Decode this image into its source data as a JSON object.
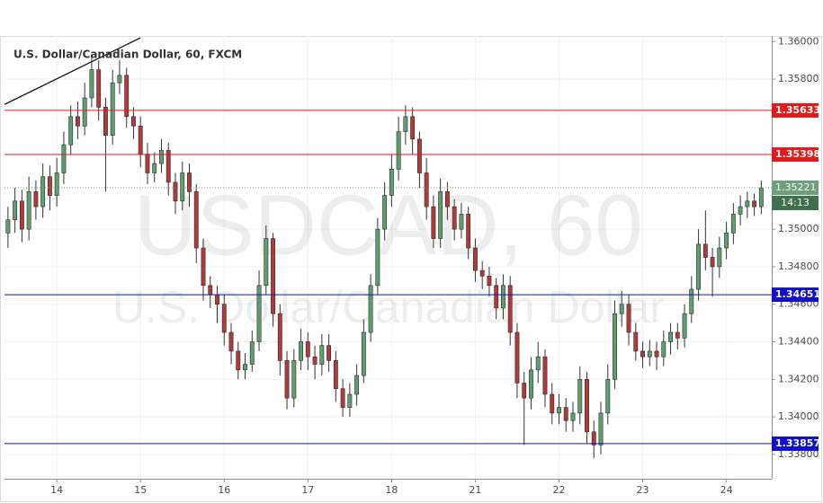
{
  "chart_data": {
    "type": "candlestick",
    "title": "U.S. Dollar/Canadian Dollar, 60, FXCM",
    "watermark": "USDCAD, 60",
    "watermark_subtitle": "U.S. Dollar/Canadian Dollar",
    "up_color": "#5f9e6e",
    "down_color": "#b23a3a",
    "grid": true,
    "xlim": [
      0,
      220
    ],
    "ylim": [
      1.3367,
      1.3603
    ],
    "xticks": [
      {
        "value": 15,
        "label": "14"
      },
      {
        "value": 39,
        "label": "15"
      },
      {
        "value": 63,
        "label": "16"
      },
      {
        "value": 87,
        "label": "17"
      },
      {
        "value": 111,
        "label": "18"
      },
      {
        "value": 135,
        "label": "21"
      },
      {
        "value": 159,
        "label": "22"
      },
      {
        "value": 183,
        "label": "23"
      },
      {
        "value": 207,
        "label": "24"
      }
    ],
    "yticks": [
      {
        "value": 1.36,
        "label": "1.36000"
      },
      {
        "value": 1.358,
        "label": "1.35800"
      },
      {
        "value": 1.35,
        "label": "1.35000"
      },
      {
        "value": 1.348,
        "label": "1.34800"
      },
      {
        "value": 1.346,
        "label": "1.34600"
      },
      {
        "value": 1.344,
        "label": "1.34400"
      },
      {
        "value": 1.342,
        "label": "1.34200"
      },
      {
        "value": 1.34,
        "label": "1.34000"
      },
      {
        "value": 1.338,
        "label": "1.33800"
      }
    ],
    "x": [
      1,
      3,
      5,
      7,
      9,
      11,
      13,
      15,
      17,
      19,
      21,
      23,
      25,
      27,
      29,
      31,
      33,
      35,
      37,
      39,
      41,
      43,
      45,
      47,
      49,
      51,
      53,
      55,
      57,
      59,
      61,
      63,
      65,
      67,
      69,
      71,
      73,
      75,
      77,
      79,
      81,
      83,
      85,
      87,
      89,
      91,
      93,
      95,
      97,
      99,
      101,
      103,
      105,
      107,
      109,
      111,
      113,
      115,
      117,
      119,
      121,
      123,
      125,
      127,
      129,
      131,
      133,
      135,
      137,
      139,
      141,
      143,
      145,
      147,
      149,
      151,
      153,
      155,
      157,
      159,
      161,
      163,
      165,
      167,
      169,
      171,
      173,
      175,
      177,
      179,
      181,
      183,
      185,
      187,
      189,
      191,
      193,
      195,
      197,
      199,
      201,
      203,
      205,
      207,
      209,
      211,
      213,
      215,
      217
    ],
    "open": [
      1.3498,
      1.3505,
      1.3515,
      1.35,
      1.352,
      1.3512,
      1.3528,
      1.3518,
      1.353,
      1.3545,
      1.356,
      1.3555,
      1.357,
      1.3585,
      1.3565,
      1.355,
      1.3578,
      1.3582,
      1.356,
      1.3555,
      1.354,
      1.353,
      1.3535,
      1.3542,
      1.3525,
      1.3515,
      1.353,
      1.352,
      1.349,
      1.347,
      1.3465,
      1.346,
      1.3445,
      1.3435,
      1.3425,
      1.3428,
      1.344,
      1.347,
      1.3495,
      1.3455,
      1.343,
      1.341,
      1.343,
      1.344,
      1.3432,
      1.3428,
      1.3438,
      1.343,
      1.3415,
      1.3405,
      1.3412,
      1.3422,
      1.3445,
      1.347,
      1.35,
      1.3518,
      1.3532,
      1.3552,
      1.356,
      1.3548,
      1.353,
      1.3512,
      1.3495,
      1.352,
      1.3512,
      1.35,
      1.3508,
      1.349,
      1.3478,
      1.3475,
      1.347,
      1.3458,
      1.347,
      1.3445,
      1.3418,
      1.341,
      1.3425,
      1.3432,
      1.3412,
      1.3402,
      1.3405,
      1.3398,
      1.3402,
      1.342,
      1.3392,
      1.3385,
      1.3402,
      1.342,
      1.3455,
      1.346,
      1.3445,
      1.3435,
      1.3432,
      1.3435,
      1.3432,
      1.344,
      1.3445,
      1.3442,
      1.3455,
      1.3468,
      1.3492,
      1.3485,
      1.348,
      1.349,
      1.3498,
      1.3508,
      1.3512,
      1.3515,
      1.3512
    ],
    "high": [
      1.3512,
      1.3522,
      1.3521,
      1.3528,
      1.3526,
      1.3535,
      1.3534,
      1.3538,
      1.3552,
      1.3566,
      1.3568,
      1.3578,
      1.3592,
      1.359,
      1.357,
      1.3585,
      1.359,
      1.3586,
      1.3565,
      1.356,
      1.3546,
      1.3541,
      1.3548,
      1.3546,
      1.353,
      1.3536,
      1.3535,
      1.3524,
      1.3495,
      1.3475,
      1.347,
      1.3465,
      1.345,
      1.344,
      1.3434,
      1.3446,
      1.3478,
      1.3502,
      1.3498,
      1.346,
      1.3435,
      1.3436,
      1.3447,
      1.3445,
      1.3438,
      1.3444,
      1.3444,
      1.3435,
      1.342,
      1.3418,
      1.3428,
      1.3452,
      1.3476,
      1.3506,
      1.3525,
      1.354,
      1.356,
      1.3566,
      1.3565,
      1.3552,
      1.3538,
      1.3518,
      1.3527,
      1.3525,
      1.3516,
      1.3514,
      1.3512,
      1.3495,
      1.3483,
      1.348,
      1.3474,
      1.3476,
      1.3475,
      1.345,
      1.3424,
      1.3432,
      1.344,
      1.3436,
      1.3418,
      1.3412,
      1.341,
      1.3408,
      1.3427,
      1.3424,
      1.3398,
      1.3408,
      1.3428,
      1.3462,
      1.3467,
      1.3465,
      1.345,
      1.344,
      1.3441,
      1.344,
      1.3446,
      1.345,
      1.345,
      1.346,
      1.3475,
      1.35,
      1.351,
      1.349,
      1.3496,
      1.3504,
      1.3514,
      1.3518,
      1.352,
      1.3519,
      1.3526
    ],
    "low": [
      1.349,
      1.3498,
      1.3493,
      1.3494,
      1.3505,
      1.3506,
      1.351,
      1.3512,
      1.3524,
      1.354,
      1.3548,
      1.355,
      1.3565,
      1.3558,
      1.352,
      1.3545,
      1.3572,
      1.3554,
      1.3548,
      1.3533,
      1.3524,
      1.3525,
      1.353,
      1.3518,
      1.3508,
      1.351,
      1.3512,
      1.3482,
      1.3462,
      1.3458,
      1.345,
      1.3438,
      1.3428,
      1.342,
      1.342,
      1.3424,
      1.3435,
      1.3465,
      1.3448,
      1.3422,
      1.3404,
      1.3405,
      1.3425,
      1.3425,
      1.342,
      1.3422,
      1.3424,
      1.3408,
      1.34,
      1.34,
      1.3406,
      1.3418,
      1.344,
      1.3465,
      1.3494,
      1.3512,
      1.3526,
      1.3545,
      1.354,
      1.3522,
      1.3505,
      1.349,
      1.349,
      1.3505,
      1.3494,
      1.3495,
      1.3484,
      1.3472,
      1.3468,
      1.3464,
      1.3452,
      1.3452,
      1.3438,
      1.341,
      1.3385,
      1.3404,
      1.3418,
      1.3405,
      1.3396,
      1.3396,
      1.3392,
      1.3392,
      1.3396,
      1.3386,
      1.3378,
      1.338,
      1.3396,
      1.3415,
      1.3448,
      1.3438,
      1.343,
      1.3426,
      1.3427,
      1.3425,
      1.3427,
      1.3433,
      1.3436,
      1.3437,
      1.345,
      1.3462,
      1.3478,
      1.3464,
      1.3474,
      1.3484,
      1.3492,
      1.3502,
      1.3506,
      1.3507,
      1.3508
    ],
    "close": [
      1.3505,
      1.3515,
      1.35,
      1.352,
      1.3512,
      1.3528,
      1.3518,
      1.353,
      1.3545,
      1.356,
      1.3555,
      1.357,
      1.3585,
      1.3565,
      1.355,
      1.3578,
      1.3582,
      1.356,
      1.3555,
      1.354,
      1.353,
      1.3535,
      1.3542,
      1.3525,
      1.3515,
      1.353,
      1.352,
      1.349,
      1.347,
      1.3465,
      1.346,
      1.3445,
      1.3435,
      1.3425,
      1.3428,
      1.344,
      1.347,
      1.3495,
      1.3455,
      1.343,
      1.341,
      1.343,
      1.344,
      1.3432,
      1.3428,
      1.3438,
      1.343,
      1.3415,
      1.3405,
      1.3412,
      1.3422,
      1.3445,
      1.347,
      1.35,
      1.3518,
      1.3532,
      1.3552,
      1.356,
      1.3548,
      1.353,
      1.3512,
      1.3495,
      1.352,
      1.3512,
      1.35,
      1.3508,
      1.349,
      1.3478,
      1.3475,
      1.347,
      1.3458,
      1.347,
      1.3445,
      1.3418,
      1.341,
      1.3425,
      1.3432,
      1.3412,
      1.3402,
      1.3405,
      1.3398,
      1.3402,
      1.342,
      1.3392,
      1.3385,
      1.3402,
      1.342,
      1.3455,
      1.346,
      1.3445,
      1.3435,
      1.3432,
      1.3435,
      1.3432,
      1.344,
      1.3445,
      1.3442,
      1.3455,
      1.3468,
      1.3492,
      1.3485,
      1.348,
      1.349,
      1.3498,
      1.3508,
      1.3512,
      1.3515,
      1.3512,
      1.3522
    ],
    "levels": [
      {
        "value": 1.35633,
        "color": "#e31a1c"
      },
      {
        "value": 1.35398,
        "color": "#e31a1c"
      },
      {
        "value": 1.34651,
        "color": "#1010c8"
      },
      {
        "value": 1.33857,
        "color": "#1010c8"
      }
    ],
    "last_price": {
      "value": 1.35221,
      "countdown": "14:13",
      "color": "#6e9f7c",
      "countdown_color": "#3f6f4c"
    },
    "trendline": {
      "x": [
        0,
        39
      ],
      "y": [
        1.35665,
        1.3602
      ],
      "color": "#111111"
    }
  }
}
